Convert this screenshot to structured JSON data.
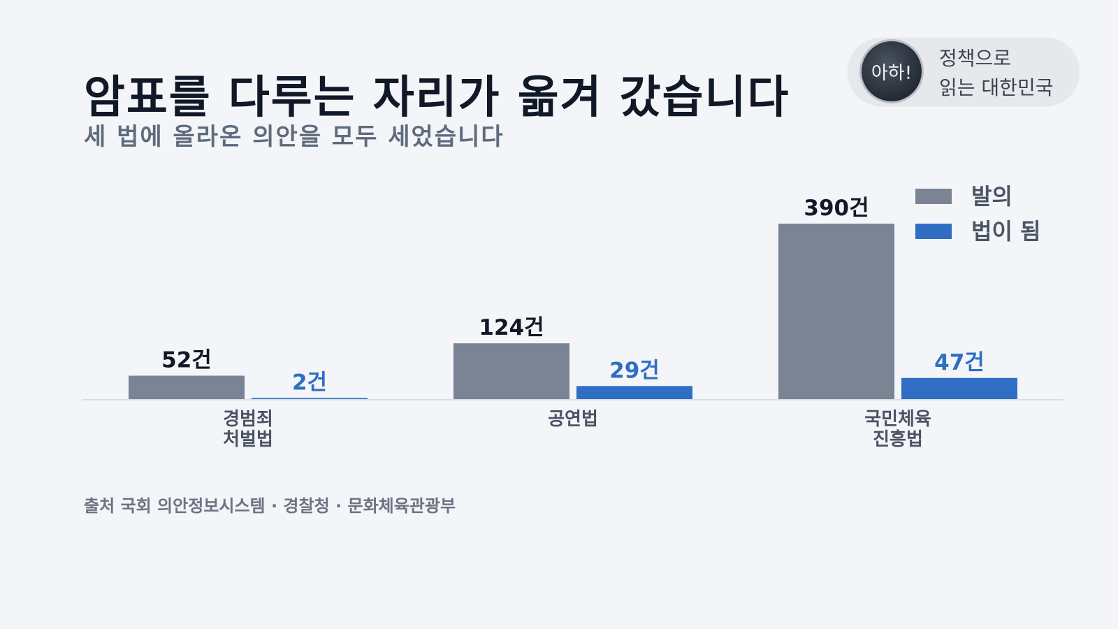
{
  "header": {
    "title": "암표를 다루는 자리가 옮겨 갔습니다",
    "subtitle": "세 법에 올라온 의안을 모두 세었습니다"
  },
  "badge": {
    "circle_text": "아하!",
    "line1": "정책으로",
    "line2": "읽는 대한민국"
  },
  "source": "출처 국회 의안정보시스템 · 경찰청 · 문화체육관광부",
  "colors": {
    "proposed": "#7a8494",
    "enacted": "#2f6ec4",
    "axis": "#d9dde3",
    "label_dark": "#111827",
    "label_cat": "#4b5363"
  },
  "chart_data": {
    "type": "bar",
    "categories": [
      [
        "경범죄",
        "처벌법"
      ],
      [
        "공연법"
      ],
      [
        "국민체육",
        "진흥법"
      ]
    ],
    "series": [
      {
        "name": "발의",
        "values": [
          52,
          124,
          390
        ],
        "labels": [
          "52건",
          "124건",
          "390건"
        ]
      },
      {
        "name": "법이 됨",
        "values": [
          2,
          29,
          47
        ],
        "labels": [
          "2건",
          "29건",
          "47건"
        ]
      }
    ],
    "ylim": [
      0,
      390
    ],
    "legend_position": "top-right",
    "grid": false
  }
}
